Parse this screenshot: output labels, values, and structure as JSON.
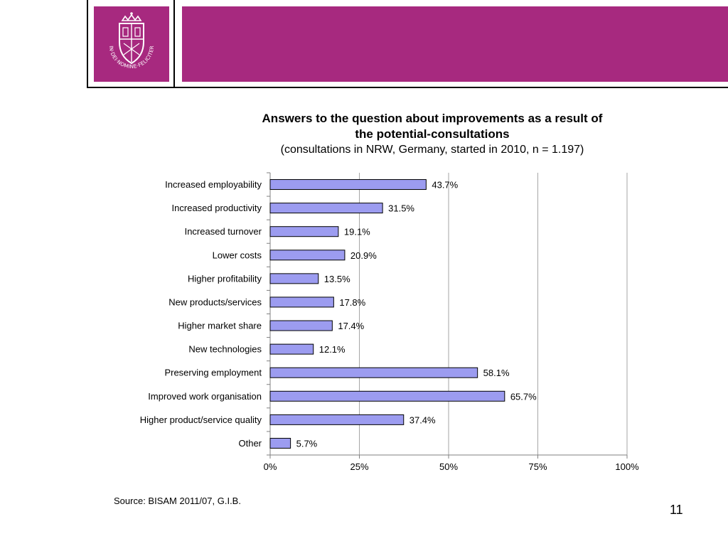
{
  "colors": {
    "accent": "#a7297f",
    "bar_fill": "#9c9cf0",
    "bar_stroke": "#000000",
    "gridline": "#a6a6a6"
  },
  "header": {
    "logo_motto": "IN·DEI·NOMINE·FELICITER"
  },
  "chart_data": {
    "type": "bar",
    "orientation": "horizontal",
    "title": "Answers to the question about improvements as a result of the potential-consultations",
    "title_lines": [
      "Answers to the question about improvements as a result of",
      "the potential-consultations"
    ],
    "subtitle": "(consultations in NRW, Germany, started in 2010, n = 1.197)",
    "categories": [
      "Increased employability",
      "Increased productivity",
      "Increased turnover",
      "Lower costs",
      "Higher profitability",
      "New products/services",
      "Higher market share",
      "New technologies",
      "Preserving employment",
      "Improved work organisation",
      "Higher product/service quality",
      "Other"
    ],
    "values": [
      43.7,
      31.5,
      19.1,
      20.9,
      13.5,
      17.8,
      17.4,
      12.1,
      58.1,
      65.7,
      37.4,
      5.7
    ],
    "value_labels": [
      "43.7%",
      "31.5%",
      "19.1%",
      "20.9%",
      "13.5%",
      "17.8%",
      "17.4%",
      "12.1%",
      "58.1%",
      "65.7%",
      "37.4%",
      "5.7%"
    ],
    "xlim": [
      0,
      100
    ],
    "xticks": [
      0,
      25,
      50,
      75,
      100
    ],
    "xtick_labels": [
      "0%",
      "25%",
      "50%",
      "75%",
      "100%"
    ],
    "grid": true,
    "legend": "none"
  },
  "footer": {
    "source": "Source: BISAM 2011/07, G.I.B.",
    "page_number": "11"
  }
}
